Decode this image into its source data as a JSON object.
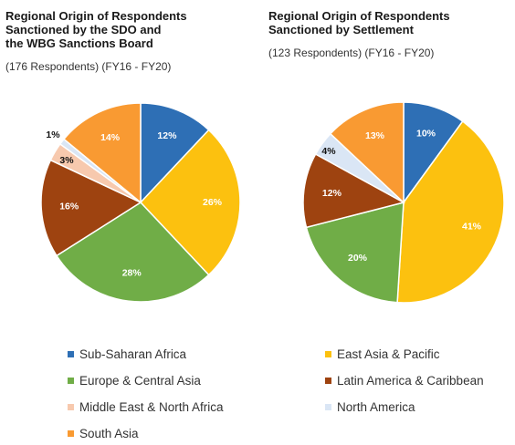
{
  "colors": {
    "sub_saharan_africa": "#2e6fb5",
    "east_asia_pacific": "#fcc10f",
    "europe_central_asia": "#70ad47",
    "latin_america_caribbean": "#9e4310",
    "middle_east_north_africa": "#f7c9ae",
    "north_america": "#dae6f5",
    "south_asia": "#f99a32"
  },
  "chart_data": [
    {
      "type": "pie",
      "title": "Regional Origin of Respondents\nSanctioned by the SDO and\nthe WBG Sanctions Board",
      "subtitle": "(176 Respondents) (FY16 - FY20)",
      "slices": [
        {
          "name": "Sub-Saharan Africa",
          "value": 12,
          "label": "12%",
          "color_key": "sub_saharan_africa"
        },
        {
          "name": "East Asia & Pacific",
          "value": 26,
          "label": "26%",
          "color_key": "east_asia_pacific"
        },
        {
          "name": "Europe & Central Asia",
          "value": 28,
          "label": "28%",
          "color_key": "europe_central_asia"
        },
        {
          "name": "Latin America & Caribbean",
          "value": 16,
          "label": "16%",
          "color_key": "latin_america_caribbean"
        },
        {
          "name": "Middle East & North Africa",
          "value": 3,
          "label": "3%",
          "color_key": "middle_east_north_africa"
        },
        {
          "name": "North America",
          "value": 1,
          "label": "1%",
          "color_key": "north_america"
        },
        {
          "name": "South Asia",
          "value": 14,
          "label": "14%",
          "color_key": "south_asia"
        }
      ]
    },
    {
      "type": "pie",
      "title": "Regional Origin of Respondents\nSanctioned by Settlement",
      "subtitle": "(123 Respondents) (FY16 - FY20)",
      "slices": [
        {
          "name": "Sub-Saharan Africa",
          "value": 10,
          "label": "10%",
          "color_key": "sub_saharan_africa"
        },
        {
          "name": "East Asia & Pacific",
          "value": 41,
          "label": "41%",
          "color_key": "east_asia_pacific"
        },
        {
          "name": "Europe & Central Asia",
          "value": 20,
          "label": "20%",
          "color_key": "europe_central_asia"
        },
        {
          "name": "Latin America & Caribbean",
          "value": 12,
          "label": "12%",
          "color_key": "latin_america_caribbean"
        },
        {
          "name": "North America",
          "value": 4,
          "label": "4%",
          "color_key": "north_america"
        },
        {
          "name": "South Asia",
          "value": 13,
          "label": "13%",
          "color_key": "south_asia"
        }
      ]
    }
  ],
  "legend": [
    {
      "label": "Sub-Saharan Africa",
      "color_key": "sub_saharan_africa"
    },
    {
      "label": "East Asia & Pacific",
      "color_key": "east_asia_pacific"
    },
    {
      "label": "Europe & Central Asia",
      "color_key": "europe_central_asia"
    },
    {
      "label": "Latin America & Caribbean",
      "color_key": "latin_america_caribbean"
    },
    {
      "label": "Middle East & North Africa",
      "color_key": "middle_east_north_africa"
    },
    {
      "label": "North America",
      "color_key": "north_america"
    },
    {
      "label": "South Asia",
      "color_key": "south_asia"
    }
  ]
}
